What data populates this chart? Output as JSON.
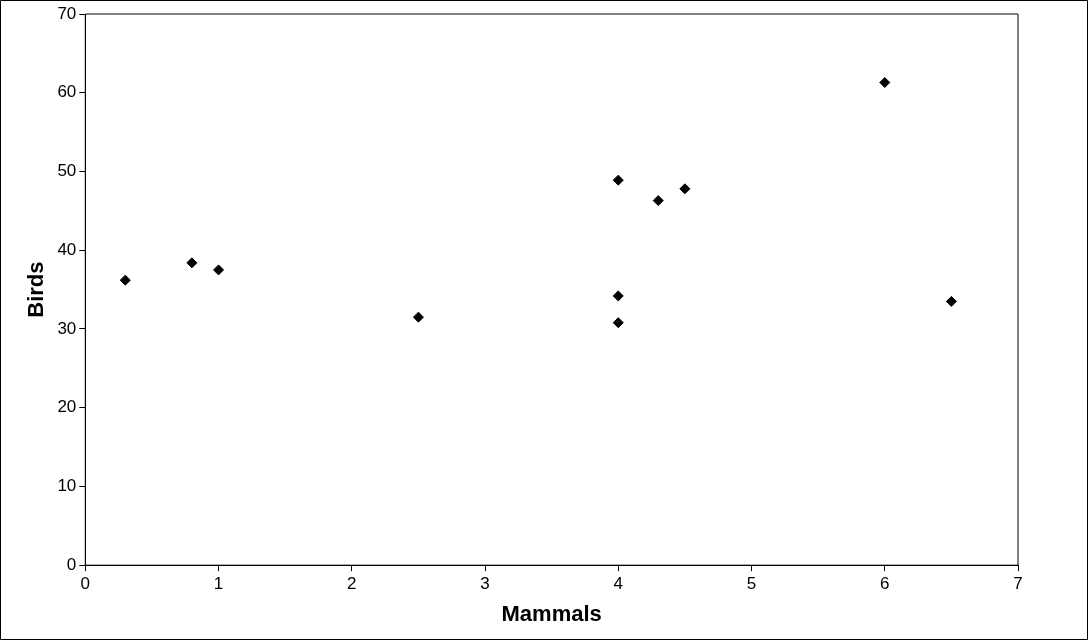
{
  "chart_data": {
    "type": "scatter",
    "xlabel": "Mammals",
    "ylabel": "Birds",
    "x": [
      0.3,
      0.8,
      1.0,
      2.5,
      4.0,
      4.0,
      4.0,
      4.3,
      4.5,
      6.0,
      6.5
    ],
    "values": [
      36.2,
      38.4,
      37.5,
      31.5,
      48.9,
      34.2,
      30.8,
      46.3,
      47.8,
      61.3,
      33.5
    ],
    "color": "#000000",
    "marker": "diamond",
    "xlim": [
      0,
      7
    ],
    "xticks": [
      0,
      1,
      2,
      3,
      4,
      5,
      6,
      7
    ],
    "ylim": [
      0,
      70
    ],
    "yticks": [
      0,
      10,
      20,
      30,
      40,
      50,
      60,
      70
    ],
    "grid": false,
    "legend": false
  }
}
